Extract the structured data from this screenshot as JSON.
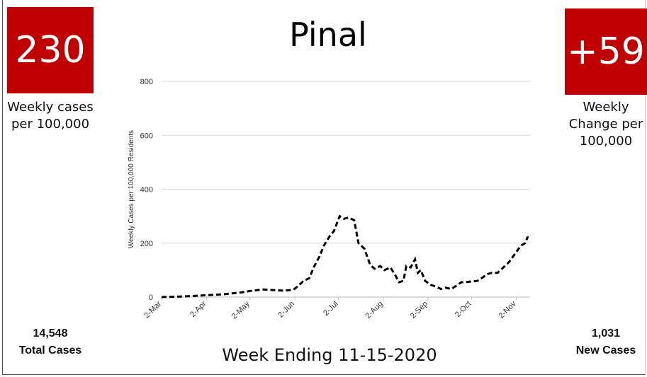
{
  "left": {
    "value": "230",
    "label": "Weekly cases per 100,000",
    "total": "14,548",
    "total_label": "Total Cases"
  },
  "right": {
    "value": "+59",
    "label": "Weekly Change per 100,000",
    "total": "1,031",
    "total_label": "New Cases"
  },
  "footer": "Week Ending 11-15-2020",
  "chart_data": {
    "type": "line",
    "title": "Pinal",
    "y_label": "Weekly Cases per 100,000 Residents",
    "xlim": [
      "2-Mar",
      "10-Nov"
    ],
    "xticks": [
      "2-Mar",
      "2-Apr",
      "2-May",
      "2-Jun",
      "2-Jul",
      "2-Aug",
      "2-Sep",
      "2-Oct",
      "2-Nov"
    ],
    "ylim": [
      0,
      800
    ],
    "yticks": [
      0,
      200,
      400,
      600,
      800
    ],
    "grid": true,
    "series": [
      {
        "name": "Weekly cases",
        "color": "#000000",
        "x": [
          "2-Mar",
          "9-Mar",
          "16-Mar",
          "23-Mar",
          "30-Mar",
          "6-Apr",
          "13-Apr",
          "20-Apr",
          "27-Apr",
          "4-May",
          "11-May",
          "18-May",
          "25-May",
          "1-Jun",
          "4-Jun",
          "8-Jun",
          "12-Jun",
          "15-Jun",
          "19-Jun",
          "22-Jun",
          "26-Jun",
          "29-Jun",
          "3-Jul",
          "6-Jul",
          "9-Jul",
          "13-Jul",
          "16-Jul",
          "20-Jul",
          "24-Jul",
          "27-Jul",
          "31-Jul",
          "3-Aug",
          "7-Aug",
          "10-Aug",
          "13-Aug",
          "16-Aug",
          "18-Aug",
          "21-Aug",
          "24-Aug",
          "26-Aug",
          "28-Aug",
          "31-Aug",
          "4-Sep",
          "7-Sep",
          "11-Sep",
          "14-Sep",
          "18-Sep",
          "21-Sep",
          "25-Sep",
          "28-Sep",
          "2-Oct",
          "6-Oct",
          "9-Oct",
          "13-Oct",
          "16-Oct",
          "20-Oct",
          "24-Oct",
          "28-Oct",
          "1-Nov",
          "5-Nov",
          "8-Nov",
          "10-Nov"
        ],
        "values": [
          0,
          1,
          2,
          4,
          6,
          8,
          10,
          14,
          18,
          24,
          28,
          26,
          24,
          27,
          40,
          60,
          70,
          110,
          150,
          190,
          225,
          245,
          300,
          290,
          295,
          285,
          200,
          180,
          120,
          105,
          115,
          100,
          110,
          85,
          55,
          60,
          115,
          110,
          140,
          90,
          100,
          60,
          45,
          40,
          30,
          35,
          30,
          40,
          55,
          55,
          58,
          60,
          70,
          85,
          90,
          90,
          110,
          130,
          160,
          190,
          200,
          225
        ]
      }
    ]
  }
}
